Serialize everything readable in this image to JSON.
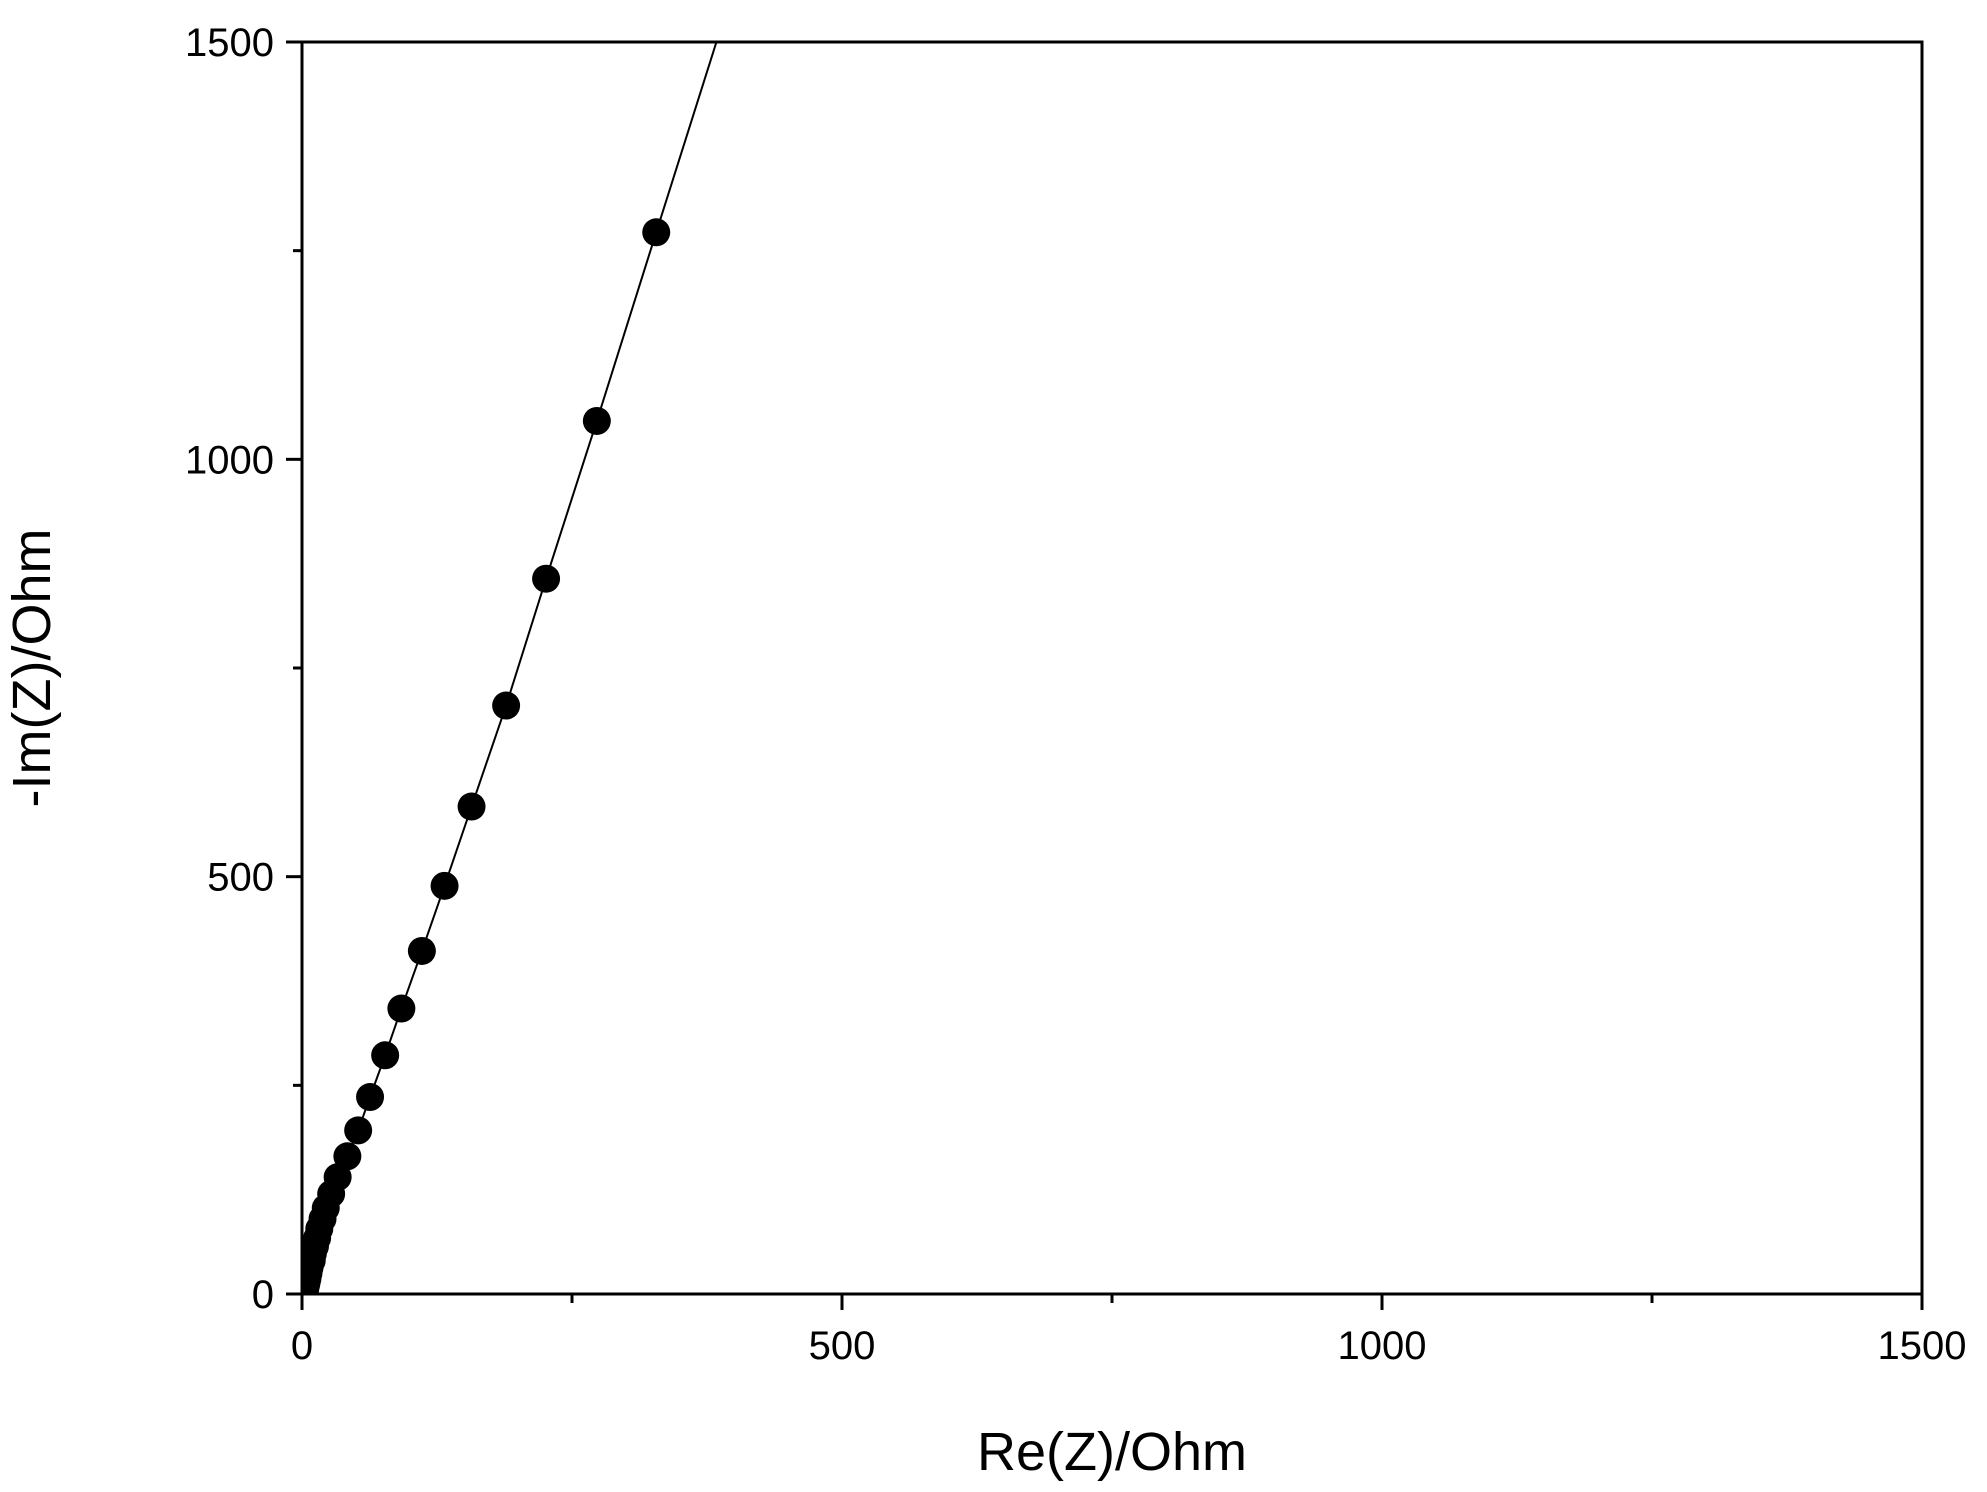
{
  "chart_data": {
    "type": "scatter",
    "title": "",
    "xlabel": "Re(Z)/Ohm",
    "ylabel": "-Im(Z)/Ohm",
    "xlim": [
      0,
      1500
    ],
    "ylim": [
      0,
      1500
    ],
    "xticks": [
      0,
      500,
      1000,
      1500
    ],
    "yticks": [
      0,
      500,
      1000,
      1500
    ],
    "x_minor_ticks": [
      250,
      750,
      1250
    ],
    "y_minor_ticks": [
      250,
      750,
      1250
    ],
    "grid": false,
    "legend": "none",
    "colors": {
      "marker": "#000000",
      "line": "#000000",
      "axes": "#000000"
    },
    "series": [
      {
        "marker": "filled-circle",
        "connect_line": true,
        "points": [
          [
            2,
            0
          ],
          [
            3,
            6
          ],
          [
            4,
            12
          ],
          [
            5,
            18
          ],
          [
            6,
            25
          ],
          [
            7,
            32
          ],
          [
            9,
            40
          ],
          [
            10,
            48
          ],
          [
            12,
            57
          ],
          [
            14,
            67
          ],
          [
            16,
            78
          ],
          [
            19,
            90
          ],
          [
            22,
            103
          ],
          [
            27,
            120
          ],
          [
            33,
            140
          ],
          [
            42,
            165
          ],
          [
            52,
            196
          ],
          [
            63,
            236
          ],
          [
            77,
            286
          ],
          [
            92,
            342
          ],
          [
            111,
            411
          ],
          [
            132,
            489
          ],
          [
            157,
            584
          ],
          [
            189,
            705
          ],
          [
            226,
            857
          ],
          [
            273,
            1046
          ],
          [
            328,
            1272
          ],
          [
            394,
            1542
          ]
        ]
      }
    ]
  }
}
